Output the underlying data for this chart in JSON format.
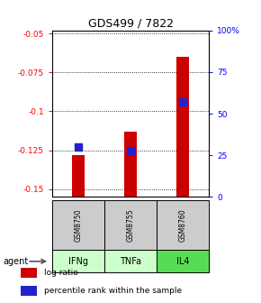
{
  "title": "GDS499 / 7822",
  "samples": [
    "GSM8750",
    "GSM8755",
    "GSM8760"
  ],
  "agents": [
    "IFNg",
    "TNFa",
    "IL4"
  ],
  "log_ratios": [
    -0.128,
    -0.113,
    -0.065
  ],
  "percentiles": [
    30,
    28,
    57
  ],
  "ylim_left": [
    -0.155,
    -0.048
  ],
  "ylim_right": [
    0,
    100
  ],
  "yticks_left": [
    -0.15,
    -0.125,
    -0.1,
    -0.075,
    -0.05
  ],
  "yticks_right": [
    0,
    25,
    50,
    75,
    100
  ],
  "ytick_labels_left": [
    "-0.15",
    "-0.125",
    "-0.1",
    "-0.075",
    "-0.05"
  ],
  "ytick_labels_right": [
    "0",
    "25",
    "50",
    "75",
    "100%"
  ],
  "bar_color": "#cc0000",
  "dot_color": "#2222cc",
  "agent_colors": [
    "#ccffcc",
    "#ccffcc",
    "#55dd55"
  ],
  "sample_bg": "#cccccc",
  "bar_width": 0.25,
  "dot_size": 28,
  "baseline": -0.155
}
